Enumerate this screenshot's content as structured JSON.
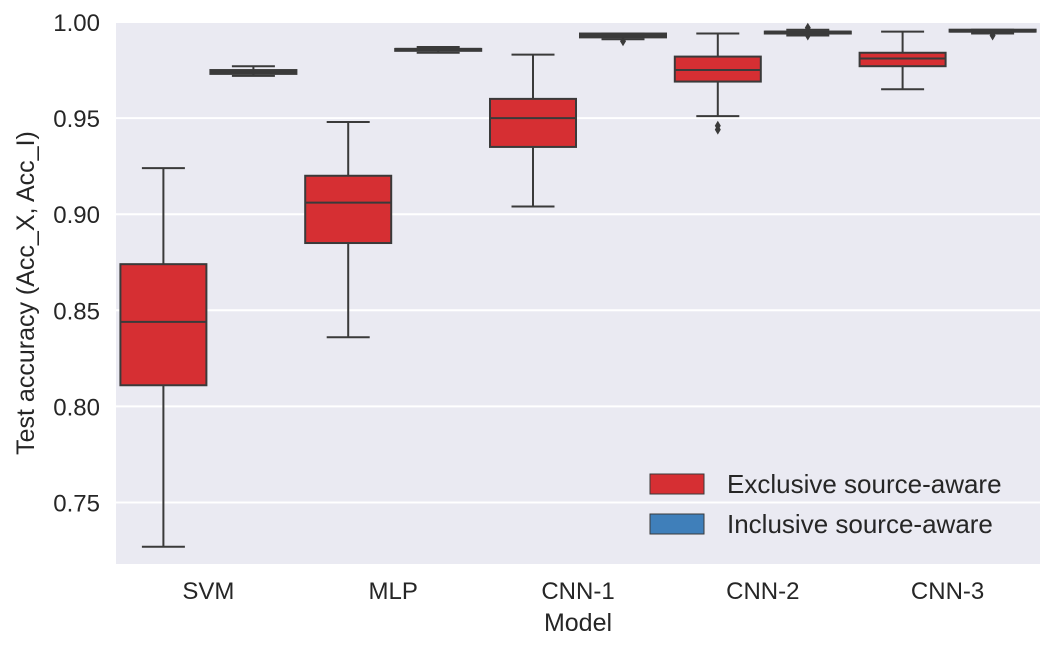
{
  "chart_data": {
    "type": "boxplot",
    "xlabel": "Model",
    "ylabel": "Test accuracy (Acc_X, Acc_I)",
    "ylim": [
      0.718,
      1.0
    ],
    "yticks": [
      "0.75",
      "0.80",
      "0.85",
      "0.90",
      "0.95",
      "1.00"
    ],
    "categories": [
      "SVM",
      "MLP",
      "CNN-1",
      "CNN-2",
      "CNN-3"
    ],
    "grid": true,
    "legend_position": "bottom-right",
    "series": [
      {
        "name": "Exclusive source-aware",
        "color": "#d62f33",
        "boxes": [
          {
            "whislo": 0.727,
            "q1": 0.811,
            "med": 0.844,
            "q3": 0.874,
            "whishi": 0.924,
            "fliers": []
          },
          {
            "whislo": 0.836,
            "q1": 0.885,
            "med": 0.906,
            "q3": 0.92,
            "whishi": 0.948,
            "fliers": []
          },
          {
            "whislo": 0.904,
            "q1": 0.935,
            "med": 0.95,
            "q3": 0.96,
            "whishi": 0.983,
            "fliers": []
          },
          {
            "whislo": 0.951,
            "q1": 0.969,
            "med": 0.975,
            "q3": 0.982,
            "whishi": 0.994,
            "fliers": [
              0.944,
              0.946
            ]
          },
          {
            "whislo": 0.965,
            "q1": 0.977,
            "med": 0.981,
            "q3": 0.984,
            "whishi": 0.995,
            "fliers": []
          }
        ]
      },
      {
        "name": "Inclusive source-aware",
        "color": "#3f7fba",
        "boxes": [
          {
            "whislo": 0.972,
            "q1": 0.973,
            "med": 0.974,
            "q3": 0.975,
            "whishi": 0.977,
            "fliers": []
          },
          {
            "whislo": 0.984,
            "q1": 0.985,
            "med": 0.986,
            "q3": 0.986,
            "whishi": 0.987,
            "fliers": []
          },
          {
            "whislo": 0.991,
            "q1": 0.992,
            "med": 0.993,
            "q3": 0.994,
            "whishi": 0.994,
            "fliers": [
              0.99
            ]
          },
          {
            "whislo": 0.993,
            "q1": 0.994,
            "med": 0.995,
            "q3": 0.995,
            "whishi": 0.996,
            "fliers": [
              0.993,
              0.997
            ]
          },
          {
            "whislo": 0.994,
            "q1": 0.995,
            "med": 0.995,
            "q3": 0.996,
            "whishi": 0.996,
            "fliers": [
              0.993
            ]
          }
        ]
      }
    ]
  }
}
